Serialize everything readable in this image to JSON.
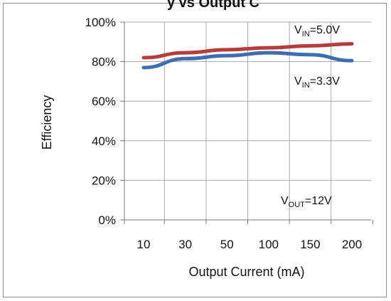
{
  "chart_data": {
    "type": "line",
    "title": "y vs Output C",
    "xlabel": "Output Current (mA)",
    "ylabel": "Efficiency",
    "categories": [
      "10",
      "30",
      "50",
      "100",
      "150",
      "200"
    ],
    "yticks": [
      "0%",
      "20%",
      "40%",
      "60%",
      "80%",
      "100%"
    ],
    "ylim": [
      0,
      100
    ],
    "grid": true,
    "series": [
      {
        "name": "VIN=5.0V",
        "label_main": "V",
        "label_sub": "IN",
        "label_rest": "=5.0V",
        "color": "#b83c3c",
        "x": [
          10,
          30,
          50,
          100,
          150,
          200
        ],
        "y": [
          82,
          84.5,
          86,
          87,
          88,
          89
        ]
      },
      {
        "name": "VIN=3.3V",
        "label_main": "V",
        "label_sub": "IN",
        "label_rest": "=3.3V",
        "color": "#3d6fb0",
        "x": [
          10,
          30,
          50,
          100,
          150,
          200
        ],
        "y": [
          77,
          81.5,
          83,
          84.5,
          83.5,
          80.5
        ]
      }
    ],
    "annotation": {
      "label_main": "V",
      "label_sub": "OUT",
      "label_rest": "=12V",
      "placement": "bottom-right"
    }
  }
}
